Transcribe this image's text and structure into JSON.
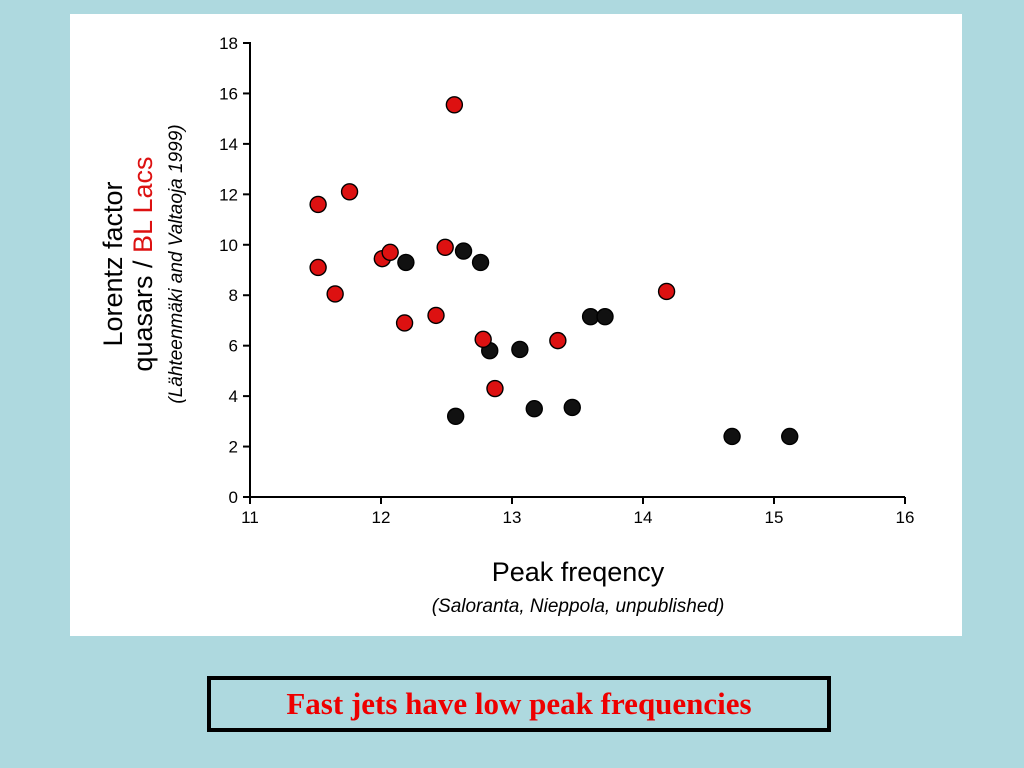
{
  "slide": {
    "background_color": "#aed9df",
    "caption": "Fast jets have low peak frequencies",
    "caption_color": "#ee0000"
  },
  "chart_data": {
    "type": "scatter",
    "title": "",
    "xlabel": "Peak freqency",
    "xlabel_sub": "(Saloranta, Nieppola, unpublished)",
    "ylabel_line1": "Lorentz factor",
    "ylabel_line2_prefix": "quasars / ",
    "ylabel_line2_highlight": "BL Lacs",
    "ylabel_highlight_color": "#dd1111",
    "ylabel_sub": "(Lähteenmäki and Valtaoja 1999)",
    "xlim": [
      11,
      16
    ],
    "ylim": [
      0,
      18
    ],
    "x_ticks": [
      11,
      12,
      13,
      14,
      15,
      16
    ],
    "y_ticks": [
      0,
      2,
      4,
      6,
      8,
      10,
      12,
      14,
      16,
      18
    ],
    "grid": false,
    "legend": "none",
    "series": [
      {
        "name": "quasars",
        "color": "#111111",
        "stroke": "#000000",
        "points": [
          [
            12.19,
            9.3
          ],
          [
            12.63,
            9.75
          ],
          [
            12.76,
            9.3
          ],
          [
            12.57,
            3.2
          ],
          [
            12.83,
            5.8
          ],
          [
            13.06,
            5.85
          ],
          [
            13.17,
            3.5
          ],
          [
            13.46,
            3.55
          ],
          [
            13.6,
            7.15
          ],
          [
            13.71,
            7.15
          ],
          [
            14.68,
            2.4
          ],
          [
            15.12,
            2.4
          ]
        ]
      },
      {
        "name": "BL Lacs",
        "color": "#dd1111",
        "stroke": "#000000",
        "points": [
          [
            11.52,
            11.6
          ],
          [
            11.76,
            12.1
          ],
          [
            11.52,
            9.1
          ],
          [
            11.65,
            8.05
          ],
          [
            12.01,
            9.45
          ],
          [
            12.07,
            9.7
          ],
          [
            12.18,
            6.9
          ],
          [
            12.42,
            7.2
          ],
          [
            12.49,
            9.9
          ],
          [
            12.56,
            15.55
          ],
          [
            12.78,
            6.25
          ],
          [
            12.87,
            4.3
          ],
          [
            13.35,
            6.2
          ],
          [
            14.18,
            8.15
          ]
        ]
      }
    ]
  }
}
